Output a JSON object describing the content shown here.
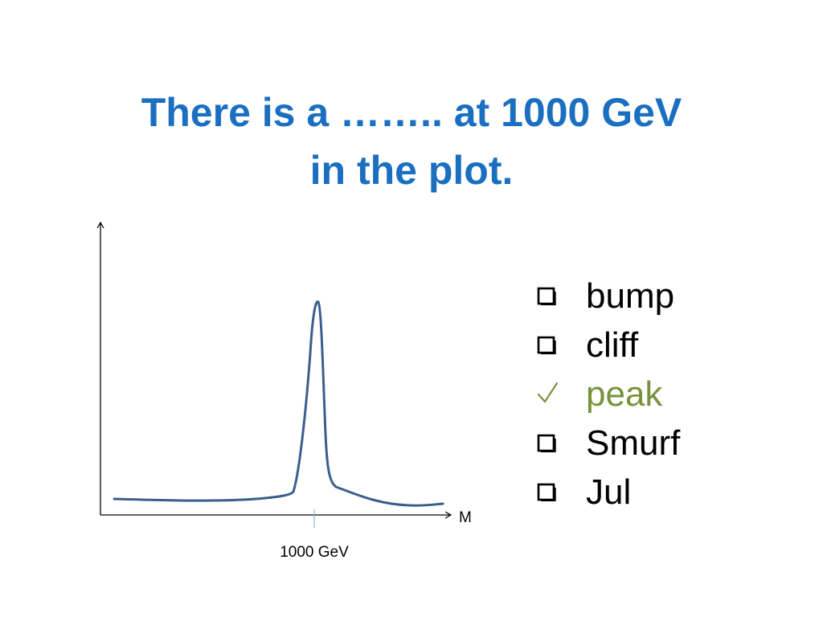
{
  "slide": {
    "title_line1": "There is a …….. at 1000 GeV",
    "title_line2": "in the plot."
  },
  "options": [
    {
      "label": "bump",
      "state": "unchecked",
      "icon": "checkbox-icon"
    },
    {
      "label": "cliff",
      "state": "unchecked",
      "icon": "checkbox-icon"
    },
    {
      "label": "peak",
      "state": "checked",
      "icon": "checkmark-icon"
    },
    {
      "label": "Smurf",
      "state": "unchecked",
      "icon": "checkbox-icon"
    },
    {
      "label": "Jul",
      "state": "unchecked",
      "icon": "checkbox-icon"
    }
  ],
  "colors": {
    "title": "#1a6fc0",
    "curve": "#3b5e8c",
    "checked": "#77923b",
    "tick": "#8fb3d4"
  },
  "chart_data": {
    "type": "line",
    "xlabel": "M",
    "tick_labels": [
      "1000 GeV"
    ],
    "peak_position": "1000 GeV",
    "grid": false
  }
}
